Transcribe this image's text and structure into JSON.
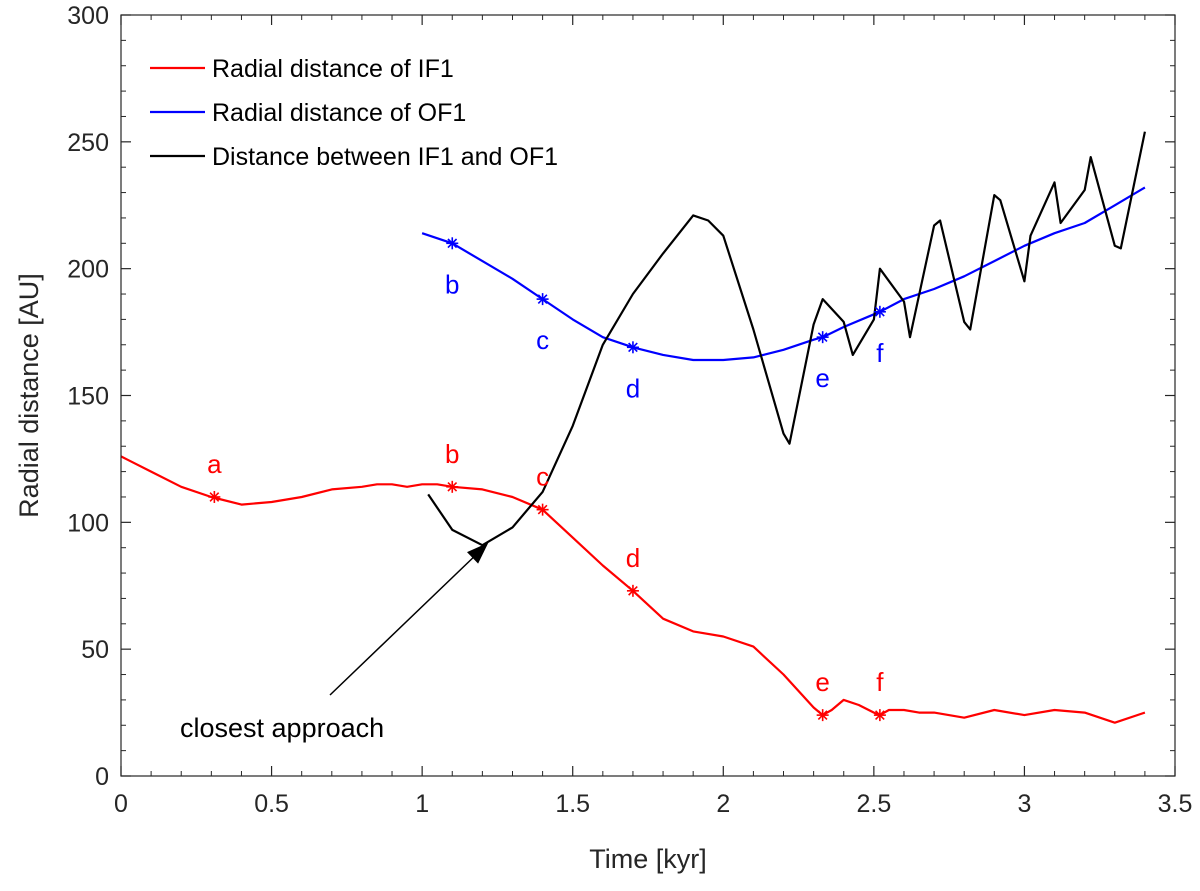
{
  "chart_data": {
    "type": "line",
    "title": "",
    "xlabel": "Time [kyr]",
    "ylabel": "Radial distance [AU]",
    "xlim": [
      0,
      3.5
    ],
    "ylim": [
      0,
      300
    ],
    "xticks": [
      0,
      0.5,
      1,
      1.5,
      2,
      2.5,
      3,
      3.5
    ],
    "xtick_labels": [
      "0",
      "0.5",
      "1",
      "1.5",
      "2",
      "2.5",
      "3",
      "3.5"
    ],
    "yticks": [
      0,
      50,
      100,
      150,
      200,
      250,
      300
    ],
    "ytick_labels": [
      "0",
      "50",
      "100",
      "150",
      "200",
      "250",
      "300"
    ],
    "grid": false,
    "legend_position": "top-left",
    "series": [
      {
        "name": "Radial distance of IF1",
        "color": "#ff0000",
        "x": [
          0,
          0.1,
          0.2,
          0.3,
          0.4,
          0.5,
          0.6,
          0.7,
          0.8,
          0.85,
          0.9,
          0.95,
          1.0,
          1.05,
          1.1,
          1.2,
          1.3,
          1.4,
          1.5,
          1.6,
          1.7,
          1.8,
          1.9,
          2.0,
          2.1,
          2.2,
          2.3,
          2.33,
          2.36,
          2.4,
          2.45,
          2.5,
          2.52,
          2.55,
          2.6,
          2.65,
          2.7,
          2.8,
          2.9,
          3.0,
          3.1,
          3.2,
          3.3,
          3.4
        ],
        "y": [
          126,
          120,
          114,
          110,
          107,
          108,
          110,
          113,
          114,
          115,
          115,
          114,
          115,
          115,
          114,
          113,
          110,
          105,
          94,
          83,
          73,
          62,
          57,
          55,
          51,
          40,
          27,
          24,
          26,
          30,
          28,
          25,
          24,
          26,
          26,
          25,
          25,
          23,
          26,
          24,
          26,
          25,
          21,
          25
        ]
      },
      {
        "name": "Radial distance of OF1",
        "color": "#0000ff",
        "x": [
          1.0,
          1.1,
          1.2,
          1.3,
          1.4,
          1.5,
          1.6,
          1.7,
          1.8,
          1.9,
          2.0,
          2.1,
          2.2,
          2.3,
          2.33,
          2.4,
          2.5,
          2.52,
          2.6,
          2.7,
          2.8,
          2.9,
          3.0,
          3.1,
          3.2,
          3.3,
          3.4
        ],
        "y": [
          214,
          210,
          203,
          196,
          188,
          180,
          173,
          169,
          166,
          164,
          164,
          165,
          168,
          172,
          173,
          177,
          182,
          183,
          188,
          192,
          197,
          203,
          209,
          214,
          218,
          225,
          232
        ]
      },
      {
        "name": "Distance between IF1 and OF1",
        "color": "#000000",
        "x": [
          1.02,
          1.1,
          1.2,
          1.3,
          1.4,
          1.5,
          1.6,
          1.7,
          1.8,
          1.9,
          1.95,
          2.0,
          2.1,
          2.2,
          2.22,
          2.3,
          2.33,
          2.4,
          2.43,
          2.5,
          2.52,
          2.6,
          2.62,
          2.7,
          2.72,
          2.8,
          2.82,
          2.9,
          2.92,
          3.0,
          3.02,
          3.1,
          3.12,
          3.2,
          3.22,
          3.3,
          3.32,
          3.4
        ],
        "y": [
          111,
          97,
          91,
          98,
          112,
          138,
          170,
          190,
          206,
          221,
          219,
          213,
          176,
          135,
          131,
          178,
          188,
          179,
          166,
          180,
          200,
          187,
          173,
          217,
          219,
          179,
          176,
          229,
          227,
          195,
          213,
          234,
          218,
          231,
          244,
          209,
          208,
          254
        ]
      }
    ],
    "markers": [
      {
        "series": "Radial distance of IF1",
        "x": 0.31,
        "y": 110,
        "label": "a",
        "color": "#ff0000"
      },
      {
        "series": "Radial distance of IF1",
        "x": 1.1,
        "y": 114,
        "label": "b",
        "color": "#ff0000"
      },
      {
        "series": "Radial distance of IF1",
        "x": 1.4,
        "y": 105,
        "label": "c",
        "color": "#ff0000"
      },
      {
        "series": "Radial distance of IF1",
        "x": 1.7,
        "y": 73,
        "label": "d",
        "color": "#ff0000"
      },
      {
        "series": "Radial distance of IF1",
        "x": 2.33,
        "y": 24,
        "label": "e",
        "color": "#ff0000"
      },
      {
        "series": "Radial distance of IF1",
        "x": 2.52,
        "y": 24,
        "label": "f",
        "color": "#ff0000"
      },
      {
        "series": "Radial distance of OF1",
        "x": 1.1,
        "y": 210,
        "label": "b",
        "color": "#0000ff"
      },
      {
        "series": "Radial distance of OF1",
        "x": 1.4,
        "y": 188,
        "label": "c",
        "color": "#0000ff"
      },
      {
        "series": "Radial distance of OF1",
        "x": 1.7,
        "y": 169,
        "label": "d",
        "color": "#0000ff"
      },
      {
        "series": "Radial distance of OF1",
        "x": 2.33,
        "y": 173,
        "label": "e",
        "color": "#0000ff"
      },
      {
        "series": "Radial distance of OF1",
        "x": 2.52,
        "y": 183,
        "label": "f",
        "color": "#0000ff"
      }
    ],
    "annotation": {
      "text": "closest approach",
      "point_x": 1.22,
      "point_y": 92,
      "text_x": 1.07,
      "text_y": 20
    }
  }
}
